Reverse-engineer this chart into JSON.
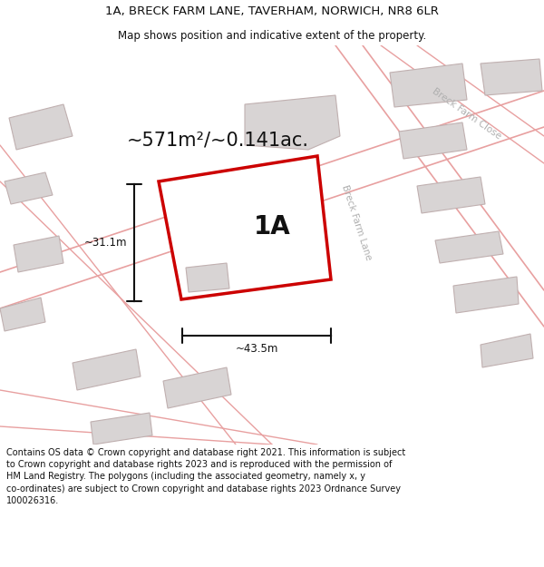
{
  "title_line1": "1A, BRECK FARM LANE, TAVERHAM, NORWICH, NR8 6LR",
  "title_line2": "Map shows position and indicative extent of the property.",
  "area_text": "~571m²/~0.141ac.",
  "label_1a": "1A",
  "dim_width": "~43.5m",
  "dim_height": "~31.1m",
  "road_label1": "Breck Farm Lane",
  "road_label2": "Breck Farm Close",
  "footer": "Contains OS data © Crown copyright and database right 2021. This information is subject\nto Crown copyright and database rights 2023 and is reproduced with the permission of\nHM Land Registry. The polygons (including the associated geometry, namely x, y\nco-ordinates) are subject to Crown copyright and database rights 2023 Ordnance Survey\n100026316.",
  "map_bg": "#f7f4f4",
  "building_fill": "#d8d4d4",
  "building_edge": "#c0b0b0",
  "road_line_color": "#e8a0a0",
  "plot_fill": "#ffffff",
  "plot_edge": "#cc0000",
  "dim_color": "#111111",
  "text_color": "#111111",
  "road_label_color": "#b0b0b0",
  "title_bg": "#ffffff",
  "footer_bg": "#ffffff"
}
